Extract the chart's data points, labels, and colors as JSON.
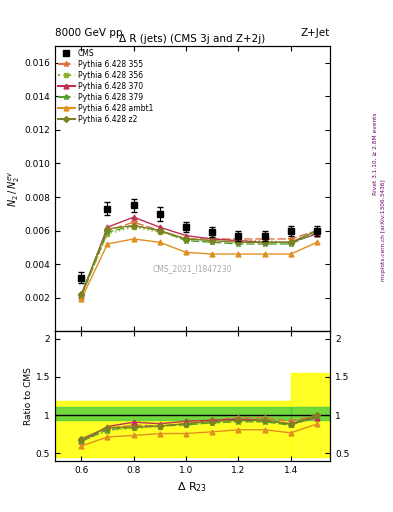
{
  "title_top": "8000 GeV pp",
  "title_right": "Z+Jet",
  "plot_title": "Δ R (jets) (CMS 3j and Z+2j)",
  "ylabel_main": "$N_2/N_2^{ev}$",
  "ylabel_ratio": "Ratio to CMS",
  "xlabel": "Δ R$_{23}$",
  "watermark": "CMS_2021_I1847230",
  "rivet_text": "Rivet 3.1.10, ≥ 2.8M events",
  "arxiv_text": "mcplots.cern.ch [arXiv:1306.3436]",
  "x_data": [
    0.6,
    0.7,
    0.8,
    0.9,
    1.0,
    1.1,
    1.2,
    1.3,
    1.4,
    1.5
  ],
  "cms_y": [
    0.0032,
    0.0073,
    0.0075,
    0.007,
    0.0062,
    0.0059,
    0.0057,
    0.0057,
    0.006,
    0.006
  ],
  "cms_yerr": [
    0.0003,
    0.0004,
    0.0004,
    0.0004,
    0.0003,
    0.0003,
    0.0003,
    0.0003,
    0.0003,
    0.0003
  ],
  "py355_y": [
    0.0021,
    0.006,
    0.0065,
    0.006,
    0.0055,
    0.0055,
    0.0055,
    0.0055,
    0.0055,
    0.006
  ],
  "py356_y": [
    0.0021,
    0.0058,
    0.0062,
    0.0059,
    0.0055,
    0.0055,
    0.0054,
    0.0054,
    0.0053,
    0.0059
  ],
  "py370_y": [
    0.0021,
    0.0062,
    0.0068,
    0.0062,
    0.0057,
    0.0055,
    0.0054,
    0.0053,
    0.0053,
    0.0058
  ],
  "py379_y": [
    0.0021,
    0.0059,
    0.0063,
    0.006,
    0.0054,
    0.0053,
    0.0052,
    0.0052,
    0.0052,
    0.0059
  ],
  "pyambt1_y": [
    0.0019,
    0.0052,
    0.0055,
    0.0053,
    0.0047,
    0.0046,
    0.0046,
    0.0046,
    0.0046,
    0.0053
  ],
  "pyz2_y": [
    0.0022,
    0.0061,
    0.0063,
    0.006,
    0.0055,
    0.0054,
    0.0053,
    0.0053,
    0.0053,
    0.006
  ],
  "ratio355": [
    0.656,
    0.822,
    0.867,
    0.857,
    0.887,
    0.932,
    0.965,
    0.965,
    0.917,
    1.0
  ],
  "ratio356": [
    0.656,
    0.795,
    0.827,
    0.843,
    0.887,
    0.932,
    0.947,
    0.947,
    0.883,
    0.983
  ],
  "ratio370": [
    0.656,
    0.849,
    0.907,
    0.886,
    0.919,
    0.932,
    0.947,
    0.93,
    0.883,
    0.967
  ],
  "ratio379": [
    0.656,
    0.808,
    0.84,
    0.857,
    0.871,
    0.898,
    0.912,
    0.912,
    0.867,
    0.983
  ],
  "ratioambt1": [
    0.594,
    0.712,
    0.733,
    0.757,
    0.758,
    0.78,
    0.807,
    0.807,
    0.767,
    0.883
  ],
  "ratioz2": [
    0.688,
    0.836,
    0.84,
    0.857,
    0.887,
    0.915,
    0.93,
    0.93,
    0.883,
    1.0
  ],
  "color355": "#e07040",
  "color356": "#90b030",
  "color370": "#c03050",
  "color379": "#50a030",
  "colorambt1": "#e09020",
  "colorz2": "#808020",
  "ylim_main": [
    0.0,
    0.017
  ],
  "ylim_ratio": [
    0.4,
    2.1
  ],
  "xlim": [
    0.5,
    1.55
  ]
}
